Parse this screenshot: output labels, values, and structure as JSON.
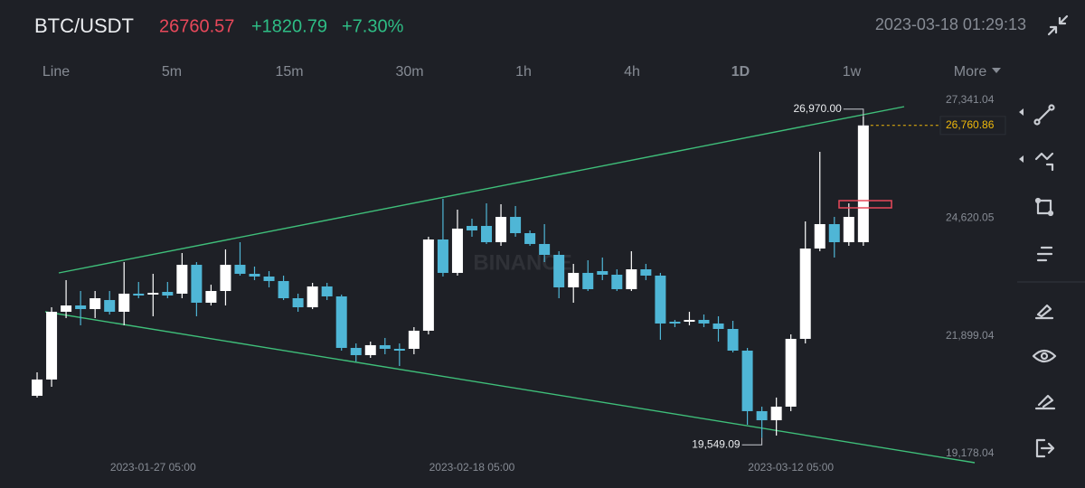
{
  "header": {
    "symbol": "BTC/USDT",
    "price": "26760.57",
    "change": "+1820.79",
    "change_pct": "+7.30%",
    "datetime": "2023-03-18 01:29:13"
  },
  "timeframes": [
    "Line",
    "5m",
    "15m",
    "30m",
    "1h",
    "4h",
    "1D",
    "1w",
    "More"
  ],
  "active_timeframe": "1D",
  "chart_data": {
    "type": "candlestick",
    "watermark": "BINANCE",
    "up_color": "#ffffff",
    "down_color": "#4fb6d6",
    "x": [
      "2023-01-19 05:00",
      "2023-01-20 05:00",
      "2023-01-21 05:00",
      "2023-01-22 05:00",
      "2023-01-23 05:00",
      "2023-01-24 05:00",
      "2023-01-25 05:00",
      "2023-01-26 05:00",
      "2023-01-27 05:00",
      "2023-01-28 05:00",
      "2023-01-29 05:00",
      "2023-01-30 05:00",
      "2023-01-31 05:00",
      "2023-02-01 05:00",
      "2023-02-02 05:00",
      "2023-02-03 05:00",
      "2023-02-04 05:00",
      "2023-02-05 05:00",
      "2023-02-06 05:00",
      "2023-02-07 05:00",
      "2023-02-08 05:00",
      "2023-02-09 05:00",
      "2023-02-10 05:00",
      "2023-02-11 05:00",
      "2023-02-12 05:00",
      "2023-02-13 05:00",
      "2023-02-14 05:00",
      "2023-02-15 05:00",
      "2023-02-16 05:00",
      "2023-02-17 05:00",
      "2023-02-18 05:00",
      "2023-02-19 05:00",
      "2023-02-20 05:00",
      "2023-02-21 05:00",
      "2023-02-22 05:00",
      "2023-02-23 05:00",
      "2023-02-24 05:00",
      "2023-02-25 05:00",
      "2023-02-26 05:00",
      "2023-02-27 05:00",
      "2023-02-28 05:00",
      "2023-03-01 05:00",
      "2023-03-02 05:00",
      "2023-03-03 05:00",
      "2023-03-04 05:00",
      "2023-03-05 05:00",
      "2023-03-06 05:00",
      "2023-03-07 05:00",
      "2023-03-08 05:00",
      "2023-03-09 05:00",
      "2023-03-10 05:00",
      "2023-03-11 05:00",
      "2023-03-12 05:00",
      "2023-03-13 05:00",
      "2023-03-14 05:00",
      "2023-03-15 05:00",
      "2023-03-16 05:00",
      "2023-03-17 05:00"
    ],
    "open": [
      20515,
      20891,
      22456,
      22602,
      22518,
      22727,
      22456,
      22874,
      22853,
      22915,
      22874,
      23541,
      22665,
      22936,
      23541,
      23333,
      23270,
      23166,
      22769,
      22560,
      23041,
      22811,
      21621,
      21454,
      21684,
      21600,
      21600,
      22018,
      24126,
      23354,
      24439,
      24439,
      24063,
      24648,
      24272,
      24022,
      23771,
      23020,
      23354,
      23395,
      23312,
      22978,
      23437,
      23291,
      22226,
      22226,
      22268,
      22185,
      22059,
      21558,
      20160,
      19950,
      20264,
      21830,
      23917,
      24481,
      24063,
      24063
    ],
    "high": [
      21057,
      22560,
      23187,
      22936,
      22936,
      22936,
      23604,
      23145,
      23333,
      23145,
      23813,
      23604,
      23082,
      23897,
      24063,
      23500,
      23395,
      23291,
      22874,
      23124,
      23124,
      22853,
      21725,
      21767,
      21851,
      21725,
      22101,
      24189,
      25065,
      24815,
      24606,
      24961,
      24940,
      24899,
      24335,
      24481,
      23855,
      23562,
      23646,
      23709,
      23437,
      23855,
      23562,
      23354,
      22268,
      22456,
      22393,
      22352,
      22247,
      21621,
      20264,
      20474,
      21934,
      24544,
      26151,
      24648,
      24961,
      26970
    ],
    "low": [
      20474,
      20723,
      22310,
      22143,
      22310,
      22393,
      22143,
      22769,
      22352,
      22769,
      22769,
      22352,
      22602,
      22602,
      23291,
      23187,
      23020,
      22727,
      22456,
      22518,
      22727,
      21558,
      21308,
      21391,
      21475,
      21203,
      21475,
      21934,
      23270,
      23291,
      24189,
      24022,
      23980,
      24189,
      23980,
      23604,
      22769,
      22665,
      22936,
      23187,
      22936,
      22936,
      23187,
      21809,
      22101,
      22143,
      22101,
      21767,
      21517,
      19846,
      19549.09,
      19595,
      20160,
      21725,
      23855,
      23709,
      23980,
      23980
    ],
    "close": [
      20891,
      22456,
      22602,
      22518,
      22769,
      22456,
      22874,
      22832,
      22894,
      22832,
      23541,
      22665,
      22936,
      23541,
      23333,
      23270,
      23166,
      22769,
      22560,
      23041,
      22811,
      21621,
      21454,
      21684,
      21600,
      21558,
      22018,
      24126,
      23354,
      24377,
      24335,
      24063,
      24648,
      24272,
      24022,
      23771,
      23020,
      23354,
      22978,
      23312,
      22978,
      23437,
      23291,
      22185,
      22185,
      22268,
      22185,
      22059,
      21558,
      20160,
      19950,
      20264,
      21830,
      23917,
      24481,
      24063,
      24648,
      26760.86
    ],
    "xlim": [
      "2023-01-18 05:00",
      "2023-03-22 05:00"
    ],
    "xticks": [
      "2023-01-27 05:00",
      "2023-02-18 05:00",
      "2023-03-12 05:00"
    ],
    "ylim": [
      19178.04,
      27341.04
    ],
    "yticks": [
      {
        "value": 27341.04,
        "label": "27,341.04"
      },
      {
        "value": 24620.05,
        "label": "24,620.05"
      },
      {
        "value": 21899.04,
        "label": "21,899.04"
      },
      {
        "value": 19178.04,
        "label": "19,178.04"
      }
    ],
    "grid": false,
    "max_label": "26,970.00",
    "min_label": "19,549.09",
    "last_price": {
      "value": 26760.86,
      "label": "26,760.86"
    },
    "last_price_color": "#f0b90b"
  }
}
